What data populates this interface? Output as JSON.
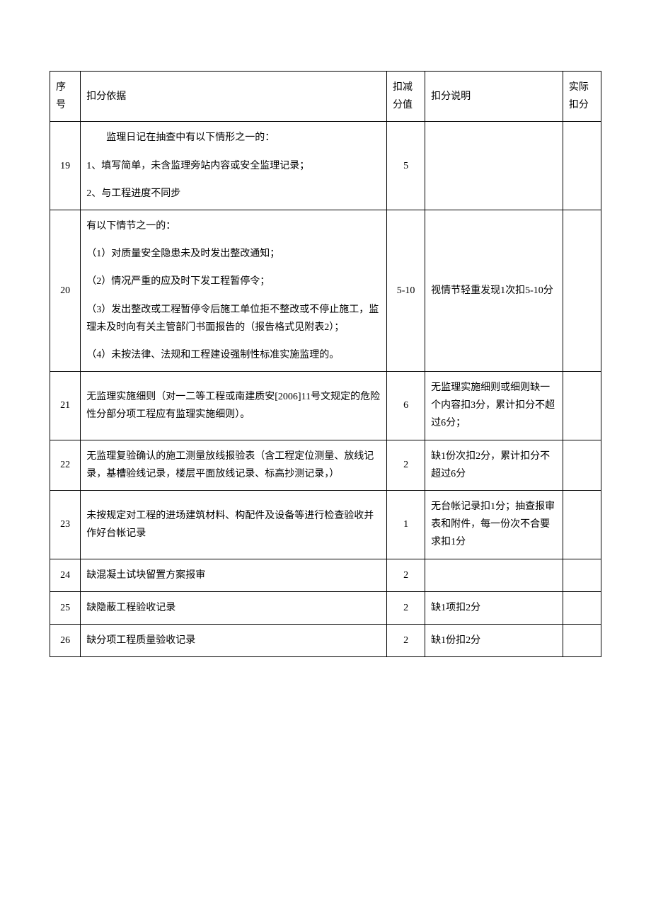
{
  "table": {
    "columns": {
      "num": "序号",
      "basis": "扣分依据",
      "deduct": "扣减分值",
      "desc": "扣分说明",
      "actual": "实际扣分"
    },
    "column_widths": {
      "num": 40,
      "basis": 400,
      "deduct": 50,
      "desc": 180,
      "actual": 50
    },
    "rows": [
      {
        "num": "19",
        "basis_paras": [
          {
            "text": "监理日记在抽查中有以下情形之一的：",
            "indent": true
          },
          {
            "text": "1、填写简单，未含监理旁站内容或安全监理记录；",
            "indent": false
          },
          {
            "text": "2、与工程进度不同步",
            "indent": false
          }
        ],
        "deduct": "5",
        "desc": "",
        "actual": ""
      },
      {
        "num": "20",
        "basis_paras": [
          {
            "text": "有以下情节之一的：",
            "indent": false
          },
          {
            "text": "（1）对质量安全隐患未及时发出整改通知；",
            "indent": false
          },
          {
            "text": "（2）情况严重的应及时下发工程暂停令；",
            "indent": false
          },
          {
            "text": "（3）发出整改或工程暂停令后施工单位拒不整改或不停止施工，监理未及时向有关主管部门书面报告的（报告格式见附表2）；",
            "indent": false
          },
          {
            "text": "（4）未按法律、法规和工程建设强制性标准实施监理的。",
            "indent": false
          }
        ],
        "deduct": "5-10",
        "desc": "视情节轻重发现1次扣5-10分",
        "actual": ""
      },
      {
        "num": "21",
        "basis_paras": [
          {
            "text": "无监理实施细则（对一二等工程或南建质安[2006]11号文规定的危险性分部分项工程应有监理实施细则）。",
            "indent": false
          }
        ],
        "deduct": "6",
        "desc": "无监理实施细则或细则缺一个内容扣3分，累计扣分不超过6分；",
        "actual": ""
      },
      {
        "num": "22",
        "basis_paras": [
          {
            "text": "无监理复验确认的施工测量放线报验表（含工程定位测量、放线记录，基槽验线记录，楼层平面放线记录、标高抄测记录，）",
            "indent": false
          }
        ],
        "deduct": "2",
        "desc": "缺1份次扣2分，累计扣分不超过6分",
        "actual": ""
      },
      {
        "num": "23",
        "basis_paras": [
          {
            "text": "未按规定对工程的进场建筑材料、构配件及设备等进行检查验收并作好台帐记录",
            "indent": false
          }
        ],
        "deduct": "1",
        "desc": "无台帐记录扣1分；抽查报审表和附件，每一份次不合要求扣1分",
        "actual": ""
      },
      {
        "num": "24",
        "basis_paras": [
          {
            "text": "缺混凝土试块留置方案报审",
            "indent": false
          }
        ],
        "deduct": "2",
        "desc": "",
        "actual": ""
      },
      {
        "num": "25",
        "basis_paras": [
          {
            "text": "缺隐蔽工程验收记录",
            "indent": false
          }
        ],
        "deduct": "2",
        "desc": "缺1项扣2分",
        "actual": ""
      },
      {
        "num": "26",
        "basis_paras": [
          {
            "text": "缺分项工程质量验收记录",
            "indent": false
          }
        ],
        "deduct": "2",
        "desc": "缺1份扣2分",
        "actual": ""
      }
    ],
    "styling": {
      "border_color": "#000000",
      "text_color": "#000000",
      "background_color": "#ffffff",
      "font_family": "SimSun",
      "font_size": 14,
      "line_height": 1.8,
      "cell_padding": 10
    }
  }
}
